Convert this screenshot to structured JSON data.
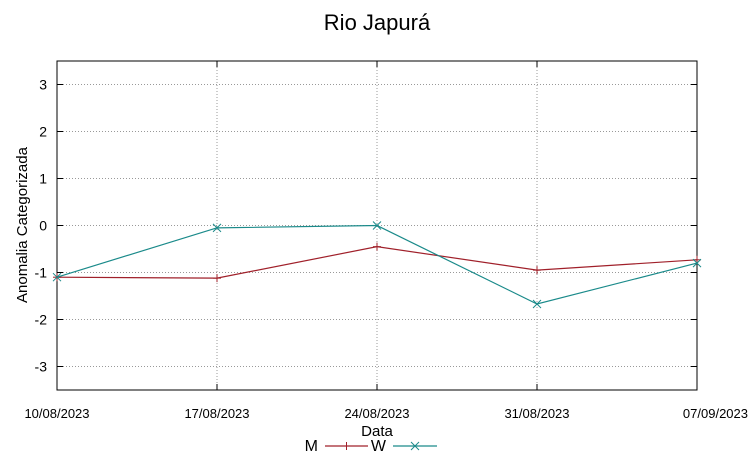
{
  "chart_data": {
    "type": "line",
    "title": "Rio Japurá",
    "xlabel": "Data",
    "ylabel": "Anomalia Categorizada",
    "categories": [
      "10/08/2023",
      "17/08/2023",
      "24/08/2023",
      "31/08/2023",
      "07/09/2023"
    ],
    "ylim": [
      -3.5,
      3.5
    ],
    "yticks": [
      -3,
      -2,
      -1,
      0,
      1,
      2,
      3
    ],
    "grid": true,
    "legend_position": "bottom-center",
    "series": [
      {
        "name": "M",
        "color": "#a0202a",
        "marker": "plus",
        "values": [
          -1.1,
          -1.12,
          -0.45,
          -0.95,
          -0.73
        ]
      },
      {
        "name": "W",
        "color": "#1a8a8a",
        "marker": "cross",
        "values": [
          -1.1,
          -0.05,
          0.0,
          -1.67,
          -0.8
        ]
      }
    ]
  }
}
